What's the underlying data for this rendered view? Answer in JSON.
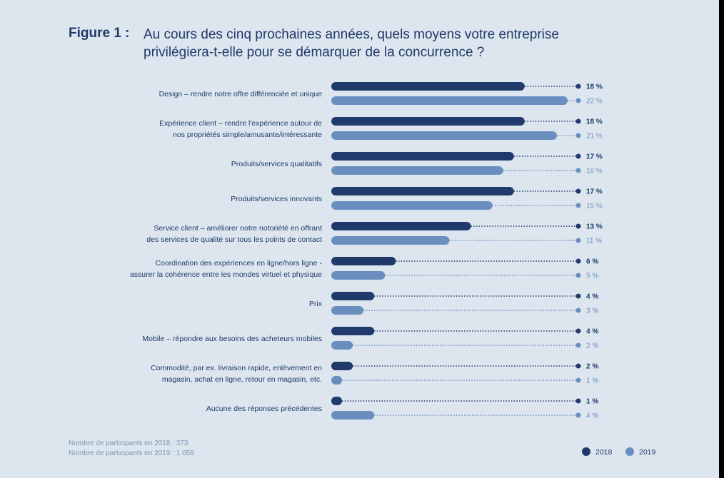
{
  "figure_label": "Figure 1 :",
  "title_lines": [
    "Au cours des cinq prochaines années, quels moyens votre entreprise",
    "privilégiera-t-elle pour se démarquer de la concurrence ?"
  ],
  "notes": [
    "Nombre de participants en 2018 : 373",
    "Nombre de participants en 2019 : 1 059"
  ],
  "colors": {
    "s2018": "#1f3a6b",
    "s2019": "#6a8fbf",
    "background": "#dde6ee"
  },
  "chart_data": {
    "type": "bar",
    "orientation": "horizontal",
    "categories": [
      [
        "Design – rendre notre offre différenciée et unique"
      ],
      [
        "Expérience client – rendre l'expérience autour de",
        "nos propriétés simple/amusante/intéressante"
      ],
      [
        "Produits/services qualitatifs"
      ],
      [
        "Produits/services innovants"
      ],
      [
        "Service client – améliorer notre notoriété en offrant",
        "des services de qualité sur tous les points de contact"
      ],
      [
        "Coordination des expériences en ligne/hors ligne -",
        "assurer la cohérence entre les mondes virtuel et physique"
      ],
      [
        "Prix"
      ],
      [
        "Mobile – répondre aux besoins des acheteurs mobiles"
      ],
      [
        "Commodité, par ex. livraison rapide, enlèvement en",
        "magasin, achat en ligne, retour en magasin, etc."
      ],
      [
        "Aucune des réponses précédentes"
      ]
    ],
    "series": [
      {
        "name": "2018",
        "values": [
          18,
          18,
          17,
          17,
          13,
          6,
          4,
          4,
          2,
          1
        ],
        "labels": [
          "18 %",
          "18 %",
          "17 %",
          "17 %",
          "13 %",
          "6 %",
          "4 %",
          "4 %",
          "2 %",
          "1 %"
        ]
      },
      {
        "name": "2019",
        "values": [
          22,
          21,
          16,
          15,
          11,
          5,
          3,
          2,
          1,
          4
        ],
        "labels": [
          "22 %",
          "21 %",
          "16 %",
          "15 %",
          "11 %",
          "5 %",
          "3 %",
          "2 %",
          "1 %",
          "4 %"
        ]
      }
    ],
    "xlim": [
      0,
      22
    ],
    "unit": "%",
    "legend_placement": "bottom-right",
    "grid": false
  }
}
